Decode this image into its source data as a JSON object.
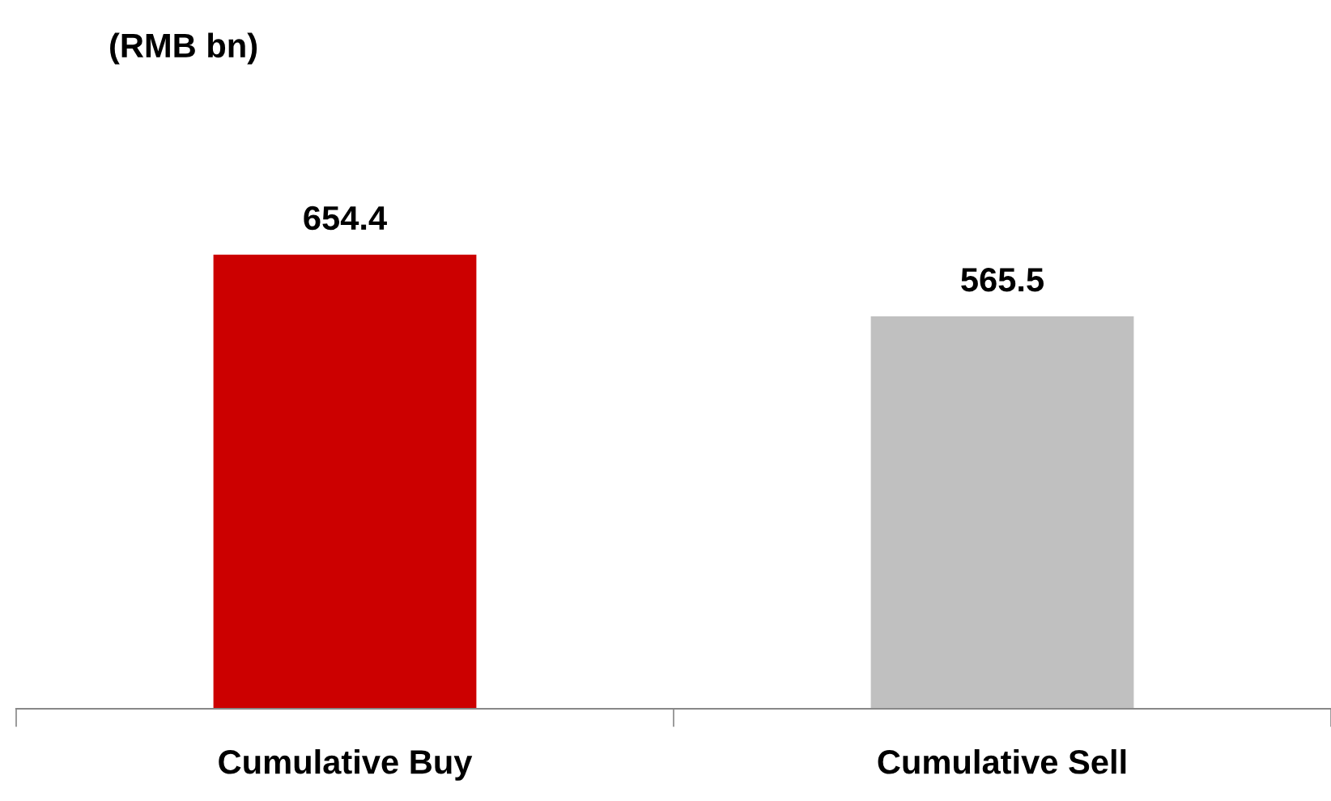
{
  "chart_data": {
    "type": "bar",
    "annotations": [
      "(RMB bn)"
    ],
    "categories": [
      "Cumulative Buy",
      "Cumulative Sell"
    ],
    "values": [
      654.4,
      565.5
    ],
    "colors": [
      "#cc0000",
      "#c0c0c0"
    ],
    "data_labels": true,
    "grid": false,
    "legend": false,
    "tick_labels": "x"
  }
}
